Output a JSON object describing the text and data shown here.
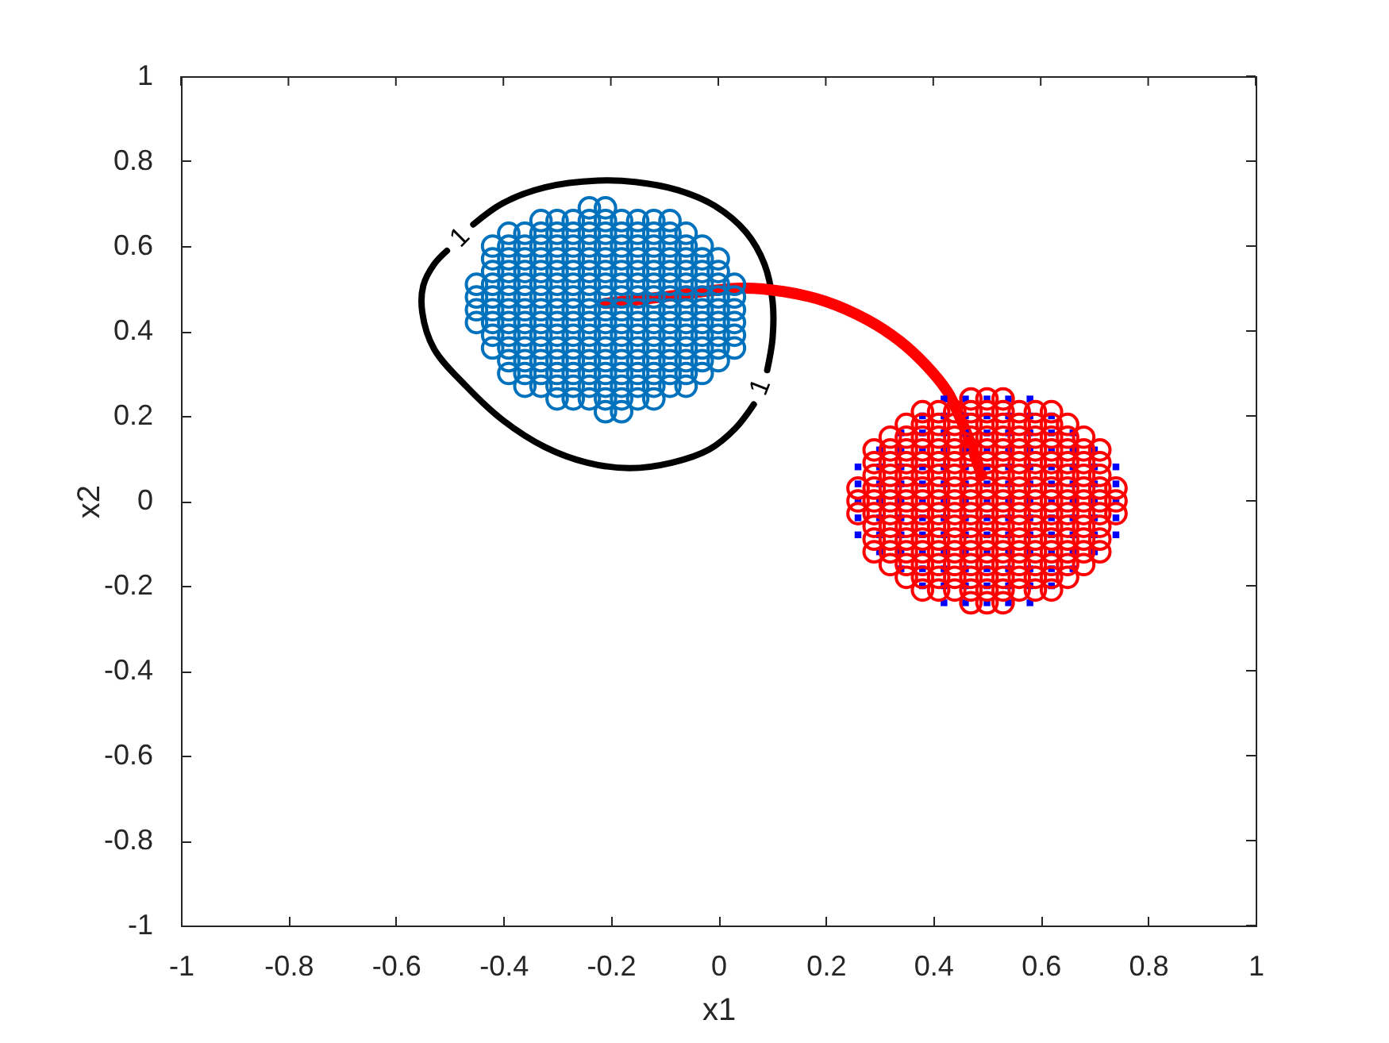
{
  "chart_data": {
    "type": "scatter",
    "xlabel": "x1",
    "ylabel": "x2",
    "xlim": [
      -1,
      1
    ],
    "ylim": [
      -1,
      1
    ],
    "xticks": [
      -1,
      -0.8,
      -0.6,
      -0.4,
      -0.2,
      0,
      0.2,
      0.4,
      0.6,
      0.8,
      1
    ],
    "yticks": [
      -1,
      -0.8,
      -0.6,
      -0.4,
      -0.2,
      0,
      0.2,
      0.4,
      0.6,
      0.8,
      1
    ],
    "annotations": [
      "1",
      "1"
    ],
    "series": [
      {
        "type": "line",
        "color": "#000000",
        "x": [
          -0.456,
          -0.401,
          -0.323,
          -0.224,
          -0.155,
          -0.076,
          -0.007,
          0.052,
          0.086,
          0.101,
          0.101,
          0.091,
          0.08,
          0.066,
          0.032,
          -0.017,
          -0.086,
          -0.165,
          -0.244,
          -0.323,
          -0.401,
          -0.47,
          -0.529,
          -0.551,
          -0.549,
          -0.529,
          -0.505
        ],
        "values": [
          0.651,
          0.701,
          0.738,
          0.754,
          0.751,
          0.732,
          0.695,
          0.632,
          0.557,
          0.47,
          0.383,
          0.308,
          null,
          0.227,
          0.171,
          0.121,
          0.09,
          0.077,
          0.09,
          0.127,
          0.19,
          0.271,
          0.358,
          0.445,
          0.507,
          0.557,
          0.589
        ]
      },
      {
        "type": "line",
        "color": "#ff0000",
        "x": [
          -0.21,
          -0.106,
          0.042,
          0.121,
          0.199,
          0.278,
          0.337,
          0.386,
          0.426,
          0.441,
          0.465,
          0.49
        ],
        "values": [
          0.465,
          0.48,
          0.501,
          0.493,
          0.47,
          0.426,
          0.377,
          0.32,
          0.258,
          0.221,
          0.15,
          0.06
        ]
      },
      {
        "color": "#0000ff",
        "marker": "square",
        "x": [
          0.42,
          0.46,
          0.5,
          0.54,
          0.58,
          0.38,
          0.42,
          0.46,
          0.5,
          0.54,
          0.58,
          0.62,
          0.34,
          0.38,
          0.42,
          0.46,
          0.5,
          0.54,
          0.58,
          0.62,
          0.66,
          0.3,
          0.34,
          0.38,
          0.42,
          0.46,
          0.5,
          0.54,
          0.58,
          0.62,
          0.66,
          0.7,
          0.26,
          0.3,
          0.34,
          0.38,
          0.42,
          0.46,
          0.5,
          0.54,
          0.58,
          0.62,
          0.66,
          0.7,
          0.74,
          0.26,
          0.3,
          0.34,
          0.38,
          0.42,
          0.46,
          0.5,
          0.54,
          0.58,
          0.62,
          0.66,
          0.7,
          0.74,
          0.26,
          0.3,
          0.34,
          0.38,
          0.42,
          0.46,
          0.5,
          0.54,
          0.58,
          0.62,
          0.66,
          0.7,
          0.74,
          0.26,
          0.3,
          0.34,
          0.38,
          0.42,
          0.46,
          0.5,
          0.54,
          0.58,
          0.62,
          0.66,
          0.7,
          0.74,
          0.26,
          0.3,
          0.34,
          0.38,
          0.42,
          0.46,
          0.5,
          0.54,
          0.58,
          0.62,
          0.66,
          0.7,
          0.74,
          0.3,
          0.34,
          0.38,
          0.42,
          0.46,
          0.5,
          0.54,
          0.58,
          0.62,
          0.66,
          0.7,
          0.34,
          0.38,
          0.42,
          0.46,
          0.5,
          0.54,
          0.58,
          0.62,
          0.66,
          0.38,
          0.42,
          0.46,
          0.5,
          0.54,
          0.58,
          0.62,
          0.42,
          0.46,
          0.5,
          0.54,
          0.58
        ],
        "values": [
          0.24,
          0.24,
          0.24,
          0.24,
          0.24,
          0.2,
          0.2,
          0.2,
          0.2,
          0.2,
          0.2,
          0.2,
          0.16,
          0.16,
          0.16,
          0.16,
          0.16,
          0.16,
          0.16,
          0.16,
          0.16,
          0.12,
          0.12,
          0.12,
          0.12,
          0.12,
          0.12,
          0.12,
          0.12,
          0.12,
          0.12,
          0.12,
          0.08,
          0.08,
          0.08,
          0.08,
          0.08,
          0.08,
          0.08,
          0.08,
          0.08,
          0.08,
          0.08,
          0.08,
          0.08,
          0.04,
          0.04,
          0.04,
          0.04,
          0.04,
          0.04,
          0.04,
          0.04,
          0.04,
          0.04,
          0.04,
          0.04,
          0.04,
          0,
          0,
          0,
          0,
          0,
          0,
          0,
          0,
          0,
          0,
          0,
          0,
          0,
          -0.04,
          -0.04,
          -0.04,
          -0.04,
          -0.04,
          -0.04,
          -0.04,
          -0.04,
          -0.04,
          -0.04,
          -0.04,
          -0.04,
          -0.04,
          -0.08,
          -0.08,
          -0.08,
          -0.08,
          -0.08,
          -0.08,
          -0.08,
          -0.08,
          -0.08,
          -0.08,
          -0.08,
          -0.08,
          -0.08,
          -0.12,
          -0.12,
          -0.12,
          -0.12,
          -0.12,
          -0.12,
          -0.12,
          -0.12,
          -0.12,
          -0.12,
          -0.12,
          -0.16,
          -0.16,
          -0.16,
          -0.16,
          -0.16,
          -0.16,
          -0.16,
          -0.16,
          -0.16,
          -0.2,
          -0.2,
          -0.2,
          -0.2,
          -0.2,
          -0.2,
          -0.2,
          -0.24,
          -0.24,
          -0.24,
          -0.24,
          -0.24
        ]
      },
      {
        "color": "#ff0000",
        "marker": "circle",
        "x": [
          0.47,
          0.5,
          0.53,
          0.38,
          0.41,
          0.44,
          0.47,
          0.5,
          0.53,
          0.56,
          0.59,
          0.62,
          0.35,
          0.38,
          0.41,
          0.44,
          0.47,
          0.5,
          0.53,
          0.56,
          0.59,
          0.62,
          0.65,
          0.32,
          0.35,
          0.38,
          0.41,
          0.44,
          0.47,
          0.5,
          0.53,
          0.56,
          0.59,
          0.62,
          0.65,
          0.68,
          0.29,
          0.32,
          0.35,
          0.38,
          0.41,
          0.44,
          0.47,
          0.5,
          0.53,
          0.56,
          0.59,
          0.62,
          0.65,
          0.68,
          0.71,
          0.29,
          0.32,
          0.35,
          0.38,
          0.41,
          0.44,
          0.47,
          0.5,
          0.53,
          0.56,
          0.59,
          0.62,
          0.65,
          0.68,
          0.71,
          0.29,
          0.32,
          0.35,
          0.38,
          0.41,
          0.44,
          0.47,
          0.5,
          0.53,
          0.56,
          0.59,
          0.62,
          0.65,
          0.68,
          0.71,
          0.26,
          0.29,
          0.32,
          0.35,
          0.38,
          0.41,
          0.44,
          0.47,
          0.5,
          0.53,
          0.56,
          0.59,
          0.62,
          0.65,
          0.68,
          0.71,
          0.74,
          0.26,
          0.29,
          0.32,
          0.35,
          0.38,
          0.41,
          0.44,
          0.47,
          0.5,
          0.53,
          0.56,
          0.59,
          0.62,
          0.65,
          0.68,
          0.71,
          0.74,
          0.26,
          0.29,
          0.32,
          0.35,
          0.38,
          0.41,
          0.44,
          0.47,
          0.5,
          0.53,
          0.56,
          0.59,
          0.62,
          0.65,
          0.68,
          0.71,
          0.74,
          0.29,
          0.32,
          0.35,
          0.38,
          0.41,
          0.44,
          0.47,
          0.5,
          0.53,
          0.56,
          0.59,
          0.62,
          0.65,
          0.68,
          0.71,
          0.29,
          0.32,
          0.35,
          0.38,
          0.41,
          0.44,
          0.47,
          0.5,
          0.53,
          0.56,
          0.59,
          0.62,
          0.65,
          0.68,
          0.71,
          0.29,
          0.32,
          0.35,
          0.38,
          0.41,
          0.44,
          0.47,
          0.5,
          0.53,
          0.56,
          0.59,
          0.62,
          0.65,
          0.68,
          0.71,
          0.32,
          0.35,
          0.38,
          0.41,
          0.44,
          0.47,
          0.5,
          0.53,
          0.56,
          0.59,
          0.62,
          0.65,
          0.68,
          0.35,
          0.38,
          0.41,
          0.44,
          0.47,
          0.5,
          0.53,
          0.56,
          0.59,
          0.62,
          0.65,
          0.38,
          0.41,
          0.44,
          0.47,
          0.5,
          0.53,
          0.56,
          0.59,
          0.62,
          0.47,
          0.5,
          0.53
        ],
        "values": [
          0.24,
          0.24,
          0.24,
          0.21,
          0.21,
          0.21,
          0.21,
          0.21,
          0.21,
          0.21,
          0.21,
          0.21,
          0.18,
          0.18,
          0.18,
          0.18,
          0.18,
          0.18,
          0.18,
          0.18,
          0.18,
          0.18,
          0.18,
          0.15,
          0.15,
          0.15,
          0.15,
          0.15,
          0.15,
          0.15,
          0.15,
          0.15,
          0.15,
          0.15,
          0.15,
          0.15,
          0.12,
          0.12,
          0.12,
          0.12,
          0.12,
          0.12,
          0.12,
          0.12,
          0.12,
          0.12,
          0.12,
          0.12,
          0.12,
          0.12,
          0.12,
          0.09,
          0.09,
          0.09,
          0.09,
          0.09,
          0.09,
          0.09,
          0.09,
          0.09,
          0.09,
          0.09,
          0.09,
          0.09,
          0.09,
          0.09,
          0.06,
          0.06,
          0.06,
          0.06,
          0.06,
          0.06,
          0.06,
          0.06,
          0.06,
          0.06,
          0.06,
          0.06,
          0.06,
          0.06,
          0.06,
          0.03,
          0.03,
          0.03,
          0.03,
          0.03,
          0.03,
          0.03,
          0.03,
          0.03,
          0.03,
          0.03,
          0.03,
          0.03,
          0.03,
          0.03,
          0.03,
          0.03,
          0,
          0,
          0,
          0,
          0,
          0,
          0,
          0,
          0,
          0,
          0,
          0,
          0,
          0,
          0,
          0,
          0,
          -0.03,
          -0.03,
          -0.03,
          -0.03,
          -0.03,
          -0.03,
          -0.03,
          -0.03,
          -0.03,
          -0.03,
          -0.03,
          -0.03,
          -0.03,
          -0.03,
          -0.03,
          -0.03,
          -0.03,
          -0.06,
          -0.06,
          -0.06,
          -0.06,
          -0.06,
          -0.06,
          -0.06,
          -0.06,
          -0.06,
          -0.06,
          -0.06,
          -0.06,
          -0.06,
          -0.06,
          -0.06,
          -0.09,
          -0.09,
          -0.09,
          -0.09,
          -0.09,
          -0.09,
          -0.09,
          -0.09,
          -0.09,
          -0.09,
          -0.09,
          -0.09,
          -0.09,
          -0.09,
          -0.09,
          -0.12,
          -0.12,
          -0.12,
          -0.12,
          -0.12,
          -0.12,
          -0.12,
          -0.12,
          -0.12,
          -0.12,
          -0.12,
          -0.12,
          -0.12,
          -0.12,
          -0.12,
          -0.15,
          -0.15,
          -0.15,
          -0.15,
          -0.15,
          -0.15,
          -0.15,
          -0.15,
          -0.15,
          -0.15,
          -0.15,
          -0.15,
          -0.15,
          -0.18,
          -0.18,
          -0.18,
          -0.18,
          -0.18,
          -0.18,
          -0.18,
          -0.18,
          -0.18,
          -0.18,
          -0.18,
          -0.21,
          -0.21,
          -0.21,
          -0.21,
          -0.21,
          -0.21,
          -0.21,
          -0.21,
          -0.21,
          -0.24,
          -0.24,
          -0.24
        ]
      },
      {
        "color": "#0072bd",
        "marker": "circle",
        "x": [
          -0.21,
          -0.18,
          -0.3,
          -0.27,
          -0.24,
          -0.21,
          -0.18,
          -0.15,
          -0.12,
          -0.36,
          -0.33,
          -0.3,
          -0.27,
          -0.24,
          -0.21,
          -0.18,
          -0.15,
          -0.12,
          -0.09,
          -0.06,
          -0.39,
          -0.36,
          -0.33,
          -0.3,
          -0.27,
          -0.24,
          -0.21,
          -0.18,
          -0.15,
          -0.12,
          -0.09,
          -0.06,
          -0.03,
          -0.39,
          -0.36,
          -0.33,
          -0.3,
          -0.27,
          -0.24,
          -0.21,
          -0.18,
          -0.15,
          -0.12,
          -0.09,
          -0.06,
          -0.03,
          0,
          -0.42,
          -0.39,
          -0.36,
          -0.33,
          -0.3,
          -0.27,
          -0.24,
          -0.21,
          -0.18,
          -0.15,
          -0.12,
          -0.09,
          -0.06,
          -0.03,
          0,
          0.03,
          -0.42,
          -0.39,
          -0.36,
          -0.33,
          -0.3,
          -0.27,
          -0.24,
          -0.21,
          -0.18,
          -0.15,
          -0.12,
          -0.09,
          -0.06,
          -0.03,
          0,
          0.03,
          -0.45,
          -0.42,
          -0.39,
          -0.36,
          -0.33,
          -0.3,
          -0.27,
          -0.24,
          -0.21,
          -0.18,
          -0.15,
          -0.12,
          -0.09,
          -0.06,
          -0.03,
          0,
          0.03,
          -0.45,
          -0.42,
          -0.39,
          -0.36,
          -0.33,
          -0.3,
          -0.27,
          -0.24,
          -0.21,
          -0.18,
          -0.15,
          -0.12,
          -0.09,
          -0.06,
          -0.03,
          0,
          0.03,
          -0.45,
          -0.42,
          -0.39,
          -0.36,
          -0.33,
          -0.3,
          -0.27,
          -0.24,
          -0.21,
          -0.18,
          -0.15,
          -0.12,
          -0.09,
          -0.06,
          -0.03,
          0,
          0.03,
          -0.45,
          -0.42,
          -0.39,
          -0.36,
          -0.33,
          -0.3,
          -0.27,
          -0.24,
          -0.21,
          -0.18,
          -0.15,
          -0.12,
          -0.09,
          -0.06,
          -0.03,
          0,
          0.03,
          -0.42,
          -0.39,
          -0.36,
          -0.33,
          -0.3,
          -0.27,
          -0.24,
          -0.21,
          -0.18,
          -0.15,
          -0.12,
          -0.09,
          -0.06,
          -0.03,
          0,
          -0.42,
          -0.39,
          -0.36,
          -0.33,
          -0.3,
          -0.27,
          -0.24,
          -0.21,
          -0.18,
          -0.15,
          -0.12,
          -0.09,
          -0.06,
          -0.03,
          0,
          -0.42,
          -0.39,
          -0.36,
          -0.33,
          -0.3,
          -0.27,
          -0.24,
          -0.21,
          -0.18,
          -0.15,
          -0.12,
          -0.09,
          -0.06,
          -0.03,
          -0.39,
          -0.36,
          -0.33,
          -0.3,
          -0.27,
          -0.24,
          -0.21,
          -0.18,
          -0.15,
          -0.12,
          -0.09,
          -0.06,
          -0.33,
          -0.3,
          -0.27,
          -0.24,
          -0.21,
          -0.18,
          -0.15,
          -0.12,
          -0.09,
          -0.24,
          -0.21
        ],
        "values": [
          0.21,
          0.21,
          0.24,
          0.24,
          0.24,
          0.24,
          0.24,
          0.24,
          0.24,
          0.27,
          0.27,
          0.27,
          0.27,
          0.27,
          0.27,
          0.27,
          0.27,
          0.27,
          0.27,
          0.27,
          0.3,
          0.3,
          0.3,
          0.3,
          0.3,
          0.3,
          0.3,
          0.3,
          0.3,
          0.3,
          0.3,
          0.3,
          0.3,
          0.33,
          0.33,
          0.33,
          0.33,
          0.33,
          0.33,
          0.33,
          0.33,
          0.33,
          0.33,
          0.33,
          0.33,
          0.33,
          0.33,
          0.36,
          0.36,
          0.36,
          0.36,
          0.36,
          0.36,
          0.36,
          0.36,
          0.36,
          0.36,
          0.36,
          0.36,
          0.36,
          0.36,
          0.36,
          0.36,
          0.39,
          0.39,
          0.39,
          0.39,
          0.39,
          0.39,
          0.39,
          0.39,
          0.39,
          0.39,
          0.39,
          0.39,
          0.39,
          0.39,
          0.39,
          0.39,
          0.42,
          0.42,
          0.42,
          0.42,
          0.42,
          0.42,
          0.42,
          0.42,
          0.42,
          0.42,
          0.42,
          0.42,
          0.42,
          0.42,
          0.42,
          0.42,
          0.42,
          0.45,
          0.45,
          0.45,
          0.45,
          0.45,
          0.45,
          0.45,
          0.45,
          0.45,
          0.45,
          0.45,
          0.45,
          0.45,
          0.45,
          0.45,
          0.45,
          0.45,
          0.48,
          0.48,
          0.48,
          0.48,
          0.48,
          0.48,
          0.48,
          0.48,
          0.48,
          0.48,
          0.48,
          0.48,
          0.48,
          0.48,
          0.48,
          0.48,
          0.48,
          0.51,
          0.51,
          0.51,
          0.51,
          0.51,
          0.51,
          0.51,
          0.51,
          0.51,
          0.51,
          0.51,
          0.51,
          0.51,
          0.51,
          0.51,
          0.51,
          0.51,
          0.54,
          0.54,
          0.54,
          0.54,
          0.54,
          0.54,
          0.54,
          0.54,
          0.54,
          0.54,
          0.54,
          0.54,
          0.54,
          0.54,
          0.54,
          0.57,
          0.57,
          0.57,
          0.57,
          0.57,
          0.57,
          0.57,
          0.57,
          0.57,
          0.57,
          0.57,
          0.57,
          0.57,
          0.57,
          0.57,
          0.6,
          0.6,
          0.6,
          0.6,
          0.6,
          0.6,
          0.6,
          0.6,
          0.6,
          0.6,
          0.6,
          0.6,
          0.6,
          0.6,
          0.63,
          0.63,
          0.63,
          0.63,
          0.63,
          0.63,
          0.63,
          0.63,
          0.63,
          0.63,
          0.63,
          0.63,
          0.66,
          0.66,
          0.66,
          0.66,
          0.66,
          0.66,
          0.66,
          0.66,
          0.66,
          0.69,
          0.69
        ]
      }
    ]
  }
}
